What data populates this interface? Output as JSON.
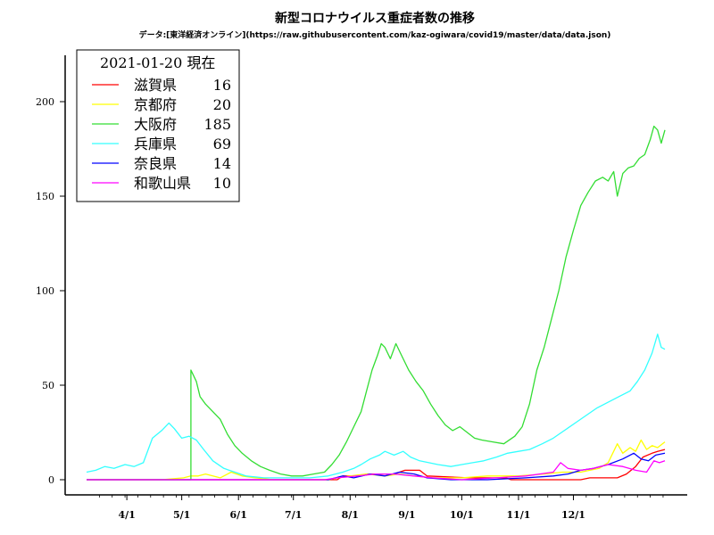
{
  "chart_data": {
    "type": "line",
    "title": "新型コロナウイルス重症者数の推移",
    "subtitle": "データ:[東洋経済オンライン](https://raw.githubusercontent.com/kaz-ogiwara/covid19/master/data/data.json)",
    "legend_title": "2021-01-20 現在",
    "legend_placement": "top-left",
    "grid": false,
    "ylim": [
      0,
      220
    ],
    "yticks": [
      0,
      50,
      100,
      150,
      200
    ],
    "xticks": [
      "4/1",
      "5/1",
      "6/1",
      "7/1",
      "8/1",
      "9/1",
      "10/1",
      "11/1",
      "12/1"
    ],
    "x_start": "2020-03-10",
    "x_end": "2021-01-20",
    "series": [
      {
        "name": "滋賀県",
        "latest": "16",
        "color": "#ff0000",
        "points": [
          [
            "2020-03-10",
            0
          ],
          [
            "2020-07-25",
            0
          ],
          [
            "2020-07-28",
            2
          ],
          [
            "2020-08-05",
            2
          ],
          [
            "2020-08-10",
            3
          ],
          [
            "2020-08-25",
            3
          ],
          [
            "2020-08-31",
            5
          ],
          [
            "2020-09-08",
            5
          ],
          [
            "2020-09-12",
            2
          ],
          [
            "2020-10-05",
            1
          ],
          [
            "2020-10-25",
            1
          ],
          [
            "2020-10-28",
            0
          ],
          [
            "2020-12-05",
            0
          ],
          [
            "2020-12-10",
            1
          ],
          [
            "2020-12-25",
            1
          ],
          [
            "2020-12-30",
            3
          ],
          [
            "2021-01-04",
            7
          ],
          [
            "2021-01-08",
            12
          ],
          [
            "2021-01-13",
            14
          ],
          [
            "2021-01-16",
            15
          ],
          [
            "2021-01-20",
            16
          ]
        ]
      },
      {
        "name": "京都府",
        "latest": "20",
        "color": "#ffff00",
        "points": [
          [
            "2020-03-10",
            0
          ],
          [
            "2020-04-20",
            0
          ],
          [
            "2020-05-02",
            1
          ],
          [
            "2020-05-06",
            2
          ],
          [
            "2020-05-10",
            2
          ],
          [
            "2020-05-14",
            3
          ],
          [
            "2020-05-18",
            2
          ],
          [
            "2020-05-22",
            1
          ],
          [
            "2020-05-28",
            4
          ],
          [
            "2020-06-03",
            2
          ],
          [
            "2020-06-10",
            1
          ],
          [
            "2020-06-20",
            0
          ],
          [
            "2020-07-20",
            0
          ],
          [
            "2020-07-25",
            1
          ],
          [
            "2020-08-01",
            2
          ],
          [
            "2020-08-10",
            3
          ],
          [
            "2020-08-20",
            2
          ],
          [
            "2020-08-28",
            3
          ],
          [
            "2020-09-05",
            2
          ],
          [
            "2020-09-15",
            1
          ],
          [
            "2020-10-01",
            1
          ],
          [
            "2020-10-15",
            2
          ],
          [
            "2020-11-01",
            2
          ],
          [
            "2020-11-15",
            3
          ],
          [
            "2020-11-25",
            4
          ],
          [
            "2020-12-05",
            4
          ],
          [
            "2020-12-15",
            6
          ],
          [
            "2020-12-20",
            9
          ],
          [
            "2020-12-25",
            19
          ],
          [
            "2020-12-28",
            14
          ],
          [
            "2021-01-01",
            17
          ],
          [
            "2021-01-04",
            15
          ],
          [
            "2021-01-07",
            21
          ],
          [
            "2021-01-10",
            16
          ],
          [
            "2021-01-13",
            18
          ],
          [
            "2021-01-16",
            17
          ],
          [
            "2021-01-20",
            20
          ]
        ]
      },
      {
        "name": "大阪府",
        "latest": "185",
        "color": "#33dd33",
        "points": [
          [
            "2020-03-10",
            0
          ],
          [
            "2020-05-06",
            0
          ],
          [
            "2020-05-06",
            58
          ],
          [
            "2020-05-09",
            52
          ],
          [
            "2020-05-11",
            44
          ],
          [
            "2020-05-14",
            40
          ],
          [
            "2020-05-18",
            36
          ],
          [
            "2020-05-22",
            32
          ],
          [
            "2020-05-26",
            24
          ],
          [
            "2020-05-30",
            18
          ],
          [
            "2020-06-03",
            14
          ],
          [
            "2020-06-08",
            10
          ],
          [
            "2020-06-13",
            7
          ],
          [
            "2020-06-18",
            5
          ],
          [
            "2020-06-24",
            3
          ],
          [
            "2020-06-30",
            2
          ],
          [
            "2020-07-06",
            2
          ],
          [
            "2020-07-12",
            3
          ],
          [
            "2020-07-18",
            4
          ],
          [
            "2020-07-22",
            8
          ],
          [
            "2020-07-26",
            13
          ],
          [
            "2020-07-30",
            20
          ],
          [
            "2020-08-03",
            28
          ],
          [
            "2020-08-07",
            36
          ],
          [
            "2020-08-10",
            47
          ],
          [
            "2020-08-13",
            58
          ],
          [
            "2020-08-16",
            66
          ],
          [
            "2020-08-18",
            72
          ],
          [
            "2020-08-20",
            70
          ],
          [
            "2020-08-23",
            64
          ],
          [
            "2020-08-26",
            72
          ],
          [
            "2020-08-29",
            66
          ],
          [
            "2020-09-02",
            58
          ],
          [
            "2020-09-06",
            52
          ],
          [
            "2020-09-10",
            47
          ],
          [
            "2020-09-14",
            40
          ],
          [
            "2020-09-18",
            34
          ],
          [
            "2020-09-22",
            29
          ],
          [
            "2020-09-26",
            26
          ],
          [
            "2020-09-30",
            28
          ],
          [
            "2020-10-04",
            25
          ],
          [
            "2020-10-08",
            22
          ],
          [
            "2020-10-12",
            21
          ],
          [
            "2020-10-18",
            20
          ],
          [
            "2020-10-24",
            19
          ],
          [
            "2020-10-30",
            23
          ],
          [
            "2020-11-03",
            28
          ],
          [
            "2020-11-07",
            40
          ],
          [
            "2020-11-11",
            58
          ],
          [
            "2020-11-15",
            70
          ],
          [
            "2020-11-19",
            85
          ],
          [
            "2020-11-23",
            100
          ],
          [
            "2020-11-27",
            118
          ],
          [
            "2020-12-01",
            132
          ],
          [
            "2020-12-05",
            145
          ],
          [
            "2020-12-09",
            152
          ],
          [
            "2020-12-13",
            158
          ],
          [
            "2020-12-17",
            160
          ],
          [
            "2020-12-20",
            158
          ],
          [
            "2020-12-23",
            163
          ],
          [
            "2020-12-25",
            150
          ],
          [
            "2020-12-28",
            162
          ],
          [
            "2020-12-31",
            165
          ],
          [
            "2021-01-03",
            166
          ],
          [
            "2021-01-06",
            170
          ],
          [
            "2021-01-09",
            172
          ],
          [
            "2021-01-12",
            180
          ],
          [
            "2021-01-14",
            187
          ],
          [
            "2021-01-16",
            185
          ],
          [
            "2021-01-18",
            178
          ],
          [
            "2021-01-20",
            185
          ]
        ]
      },
      {
        "name": "兵庫県",
        "latest": "69",
        "color": "#33ffff",
        "points": [
          [
            "2020-03-10",
            4
          ],
          [
            "2020-03-15",
            5
          ],
          [
            "2020-03-20",
            7
          ],
          [
            "2020-03-25",
            6
          ],
          [
            "2020-03-31",
            8
          ],
          [
            "2020-04-05",
            7
          ],
          [
            "2020-04-10",
            9
          ],
          [
            "2020-04-15",
            22
          ],
          [
            "2020-04-20",
            26
          ],
          [
            "2020-04-24",
            30
          ],
          [
            "2020-04-27",
            27
          ],
          [
            "2020-05-01",
            22
          ],
          [
            "2020-05-05",
            23
          ],
          [
            "2020-05-09",
            21
          ],
          [
            "2020-05-13",
            16
          ],
          [
            "2020-05-18",
            10
          ],
          [
            "2020-05-24",
            6
          ],
          [
            "2020-05-30",
            4
          ],
          [
            "2020-06-05",
            2
          ],
          [
            "2020-06-15",
            1
          ],
          [
            "2020-06-25",
            1
          ],
          [
            "2020-07-10",
            1
          ],
          [
            "2020-07-20",
            2
          ],
          [
            "2020-07-28",
            4
          ],
          [
            "2020-08-03",
            6
          ],
          [
            "2020-08-07",
            8
          ],
          [
            "2020-08-12",
            11
          ],
          [
            "2020-08-17",
            13
          ],
          [
            "2020-08-20",
            15
          ],
          [
            "2020-08-25",
            13
          ],
          [
            "2020-08-30",
            15
          ],
          [
            "2020-09-03",
            12
          ],
          [
            "2020-09-08",
            10
          ],
          [
            "2020-09-13",
            9
          ],
          [
            "2020-09-18",
            8
          ],
          [
            "2020-09-25",
            7
          ],
          [
            "2020-10-01",
            8
          ],
          [
            "2020-10-07",
            9
          ],
          [
            "2020-10-13",
            10
          ],
          [
            "2020-10-20",
            12
          ],
          [
            "2020-10-26",
            14
          ],
          [
            "2020-11-01",
            15
          ],
          [
            "2020-11-07",
            16
          ],
          [
            "2020-11-14",
            19
          ],
          [
            "2020-11-20",
            22
          ],
          [
            "2020-11-26",
            26
          ],
          [
            "2020-12-02",
            30
          ],
          [
            "2020-12-08",
            34
          ],
          [
            "2020-12-14",
            38
          ],
          [
            "2020-12-20",
            41
          ],
          [
            "2020-12-26",
            44
          ],
          [
            "2021-01-01",
            47
          ],
          [
            "2021-01-05",
            52
          ],
          [
            "2021-01-09",
            58
          ],
          [
            "2021-01-13",
            67
          ],
          [
            "2021-01-16",
            77
          ],
          [
            "2021-01-18",
            70
          ],
          [
            "2021-01-20",
            69
          ]
        ]
      },
      {
        "name": "奈良県",
        "latest": "14",
        "color": "#0000ff",
        "points": [
          [
            "2020-03-10",
            0
          ],
          [
            "2020-07-20",
            0
          ],
          [
            "2020-07-28",
            2
          ],
          [
            "2020-08-03",
            1
          ],
          [
            "2020-08-12",
            3
          ],
          [
            "2020-08-20",
            2
          ],
          [
            "2020-08-28",
            4
          ],
          [
            "2020-09-05",
            3
          ],
          [
            "2020-09-12",
            1
          ],
          [
            "2020-09-25",
            0
          ],
          [
            "2020-10-15",
            0
          ],
          [
            "2020-11-05",
            1
          ],
          [
            "2020-11-20",
            2
          ],
          [
            "2020-11-28",
            3
          ],
          [
            "2020-12-05",
            5
          ],
          [
            "2020-12-12",
            6
          ],
          [
            "2020-12-20",
            8
          ],
          [
            "2020-12-28",
            11
          ],
          [
            "2021-01-03",
            14
          ],
          [
            "2021-01-07",
            11
          ],
          [
            "2021-01-11",
            10
          ],
          [
            "2021-01-15",
            13
          ],
          [
            "2021-01-20",
            14
          ]
        ]
      },
      {
        "name": "和歌山県",
        "latest": "10",
        "color": "#ff00ff",
        "points": [
          [
            "2020-03-10",
            0
          ],
          [
            "2020-07-18",
            0
          ],
          [
            "2020-07-25",
            1
          ],
          [
            "2020-08-05",
            2
          ],
          [
            "2020-08-15",
            3
          ],
          [
            "2020-08-25",
            3
          ],
          [
            "2020-09-05",
            2
          ],
          [
            "2020-09-15",
            1
          ],
          [
            "2020-10-01",
            0
          ],
          [
            "2020-10-20",
            1
          ],
          [
            "2020-11-05",
            2
          ],
          [
            "2020-11-20",
            4
          ],
          [
            "2020-11-24",
            9
          ],
          [
            "2020-11-28",
            6
          ],
          [
            "2020-12-05",
            5
          ],
          [
            "2020-12-12",
            6
          ],
          [
            "2020-12-20",
            8
          ],
          [
            "2020-12-28",
            7
          ],
          [
            "2021-01-04",
            5
          ],
          [
            "2021-01-10",
            4
          ],
          [
            "2021-01-14",
            10
          ],
          [
            "2021-01-17",
            9
          ],
          [
            "2021-01-20",
            10
          ]
        ]
      }
    ]
  }
}
